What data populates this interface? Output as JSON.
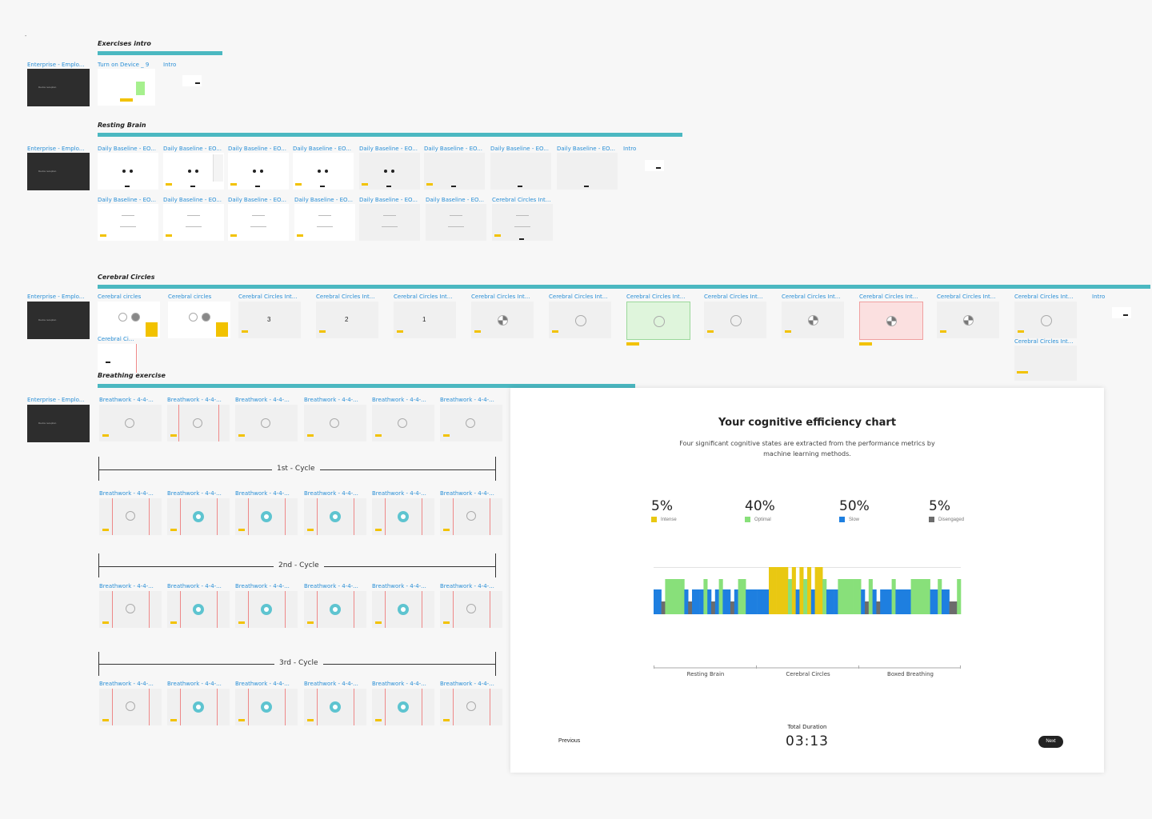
{
  "dash": "-",
  "sections": {
    "exercises_intro": {
      "title": "Exercises intro",
      "row_label": "Enterprise - Emplo...",
      "frames": [
        "Turn on Device _ 9",
        "Intro"
      ]
    },
    "resting_brain": {
      "title": "Resting Brain",
      "row_label": "Enterprise - Emplo...",
      "row1": [
        "Daily Baseline - EO...",
        "Daily Baseline - EO...",
        "Daily Baseline - EO...",
        "Daily Baseline - EO...",
        "Daily Baseline - EO...",
        "Daily Baseline - EO...",
        "Daily Baseline - EO...",
        "Daily Baseline - EO...",
        "Intro"
      ],
      "row2": [
        "Daily Baseline - EO...",
        "Daily Baseline - EO...",
        "Daily Baseline - EO...",
        "Daily Baseline - EO...",
        "Daily Baseline - EO...",
        "Daily Baseline - EO...",
        "Cerebral Circles Int..."
      ]
    },
    "cerebral_circles": {
      "title": "Cerebral Circles",
      "row_label": "Enterprise - Emplo...",
      "row1": [
        "Cerebral circles",
        "Cerebral circles",
        "Cerebral Circles Int...",
        "Cerebral Circles Int...",
        "Cerebral Circles Int...",
        "Cerebral Circles Int...",
        "Cerebral Circles Int...",
        "Cerebral Circles Int...",
        "Cerebral Circles Int...",
        "Cerebral Circles Int...",
        "Cerebral Circles Int...",
        "Cerebral Circles Int...",
        "Cerebral Circles Int...",
        "Intro"
      ],
      "extra_left": "Cerebral Ci...",
      "extra_right": "Cerebral Circles Int...",
      "countdown": [
        "3",
        "2",
        "1"
      ]
    },
    "breathing": {
      "title": "Breathing exercise",
      "row_label": "Enterprise - Emplo...",
      "frame_label": "Breathwork - 4-4-...",
      "cycles": [
        "1st - Cycle",
        "2nd - Cycle",
        "3rd - Cycle"
      ]
    }
  },
  "modal": {
    "title": "Your cognitive efficiency chart",
    "subtitle": "Four significant cognitive states are extracted from the performance metrics by machine learning methods.",
    "stats": [
      {
        "pct": "5%",
        "label": "Intense",
        "color": "#e9c812"
      },
      {
        "pct": "40%",
        "label": "Optimal",
        "color": "#88e07a"
      },
      {
        "pct": "50%",
        "label": "Slow",
        "color": "#1e7fe0"
      },
      {
        "pct": "5%",
        "label": "Disengaged",
        "color": "#6c6c6c"
      }
    ],
    "total_duration_label": "Total Duration",
    "total_duration": "03:13",
    "previous_label": "Previous",
    "next_label": "Next"
  },
  "chart_data": {
    "type": "bar",
    "title": "",
    "x_categories": [
      "Resting Brain",
      "Cerebral Circles",
      "Boxed Breathing"
    ],
    "state_share_percent": {
      "Intense": 5,
      "Optimal": 40,
      "Slow": 50,
      "Disengaged": 5
    },
    "series": [
      {
        "name": "Intense",
        "color": "#e9c812"
      },
      {
        "name": "Optimal",
        "color": "#88e07a"
      },
      {
        "name": "Slow",
        "color": "#1e7fe0"
      },
      {
        "name": "Disengaged",
        "color": "#6c6c6c"
      }
    ],
    "timeline_states": [
      "S",
      "S",
      "D",
      "O",
      "O",
      "O",
      "O",
      "O",
      "S",
      "D",
      "S",
      "S",
      "S",
      "O",
      "S",
      "D",
      "S",
      "O",
      "S",
      "S",
      "D",
      "S",
      "O",
      "O",
      "S",
      "S",
      "S",
      "S",
      "S",
      "S",
      "I",
      "I",
      "I",
      "I",
      "I",
      "O",
      "I",
      "S",
      "I",
      "O",
      "I",
      "S",
      "I",
      "I",
      "O",
      "S",
      "S",
      "S",
      "O",
      "O",
      "O",
      "O",
      "O",
      "O",
      "S",
      "D",
      "O",
      "S",
      "D",
      "S",
      "S",
      "S",
      "O",
      "S",
      "S",
      "S",
      "S",
      "O",
      "O",
      "O",
      "O",
      "O",
      "S",
      "S",
      "O",
      "S",
      "S",
      "D",
      "D",
      "O"
    ]
  }
}
